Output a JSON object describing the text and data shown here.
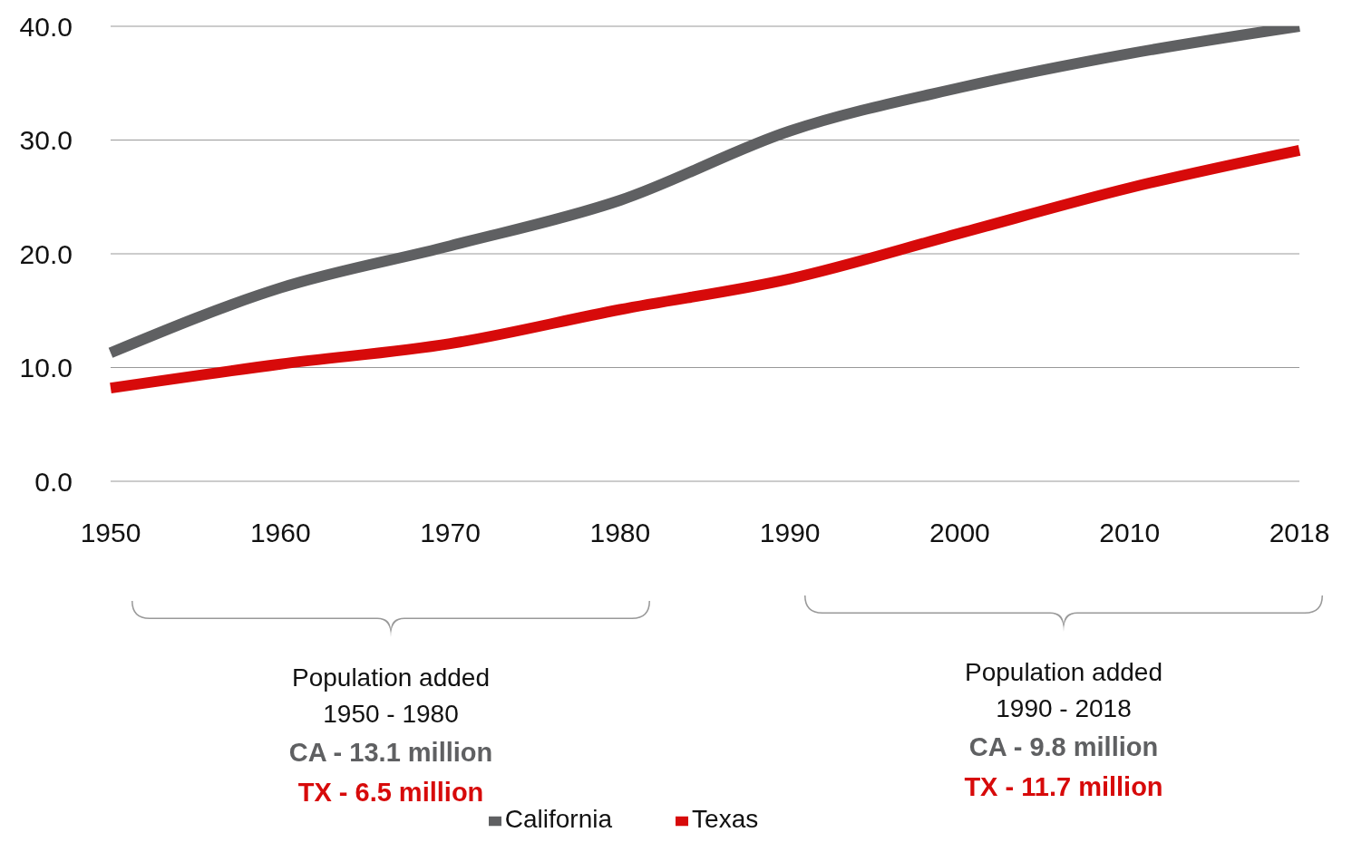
{
  "chart_data": {
    "type": "line",
    "categories": [
      "1950",
      "1960",
      "1970",
      "1980",
      "1990",
      "2000",
      "2010",
      "2018"
    ],
    "series": [
      {
        "name": "California",
        "color": "#5f6062",
        "values": [
          11.3,
          17.0,
          20.7,
          24.7,
          30.8,
          34.6,
          37.6,
          40.0
        ]
      },
      {
        "name": "Texas",
        "color": "#d70a0a",
        "values": [
          8.2,
          10.3,
          12.1,
          15.1,
          17.8,
          21.8,
          25.8,
          29.1
        ]
      }
    ],
    "ylim": [
      0,
      40
    ],
    "yticks": [
      {
        "value": 0,
        "label": "0.0"
      },
      {
        "value": 10,
        "label": "10.0"
      },
      {
        "value": 20,
        "label": "20.0"
      },
      {
        "value": 30,
        "label": "30.0"
      },
      {
        "value": 40,
        "label": "40.0"
      }
    ],
    "grid": "y",
    "legend": "bottom",
    "marker": "none",
    "line_style": "solid",
    "annotations": [
      "Population added",
      "1950 - 1980",
      "CA - 13.1 million",
      "TX - 6.5 million",
      "Population added",
      "1990 - 2018",
      "CA - 9.8 million",
      "TX - 11.7 million"
    ]
  }
}
